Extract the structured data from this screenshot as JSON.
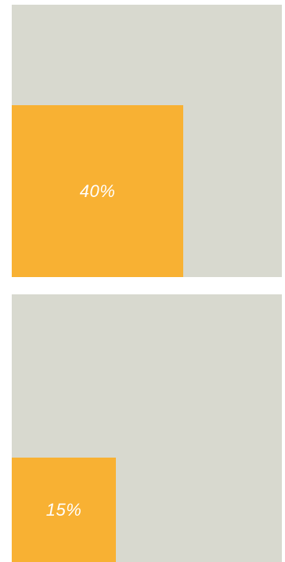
{
  "tiles": [
    {
      "label": "40%",
      "value": 0.4
    },
    {
      "label": "15%",
      "value": 0.15
    }
  ],
  "colors": {
    "panel_background": "#d8d9cf",
    "fill": "#f8b133",
    "label": "#ffffff"
  }
}
